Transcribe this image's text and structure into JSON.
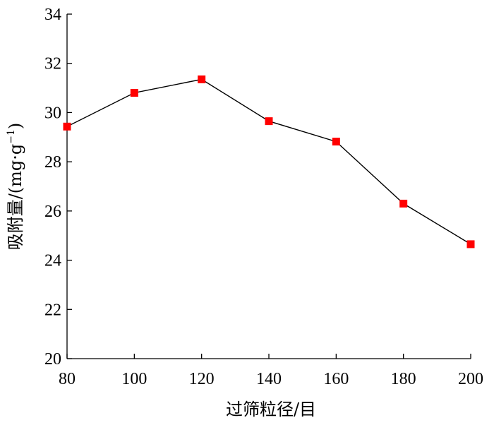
{
  "chart_data": {
    "type": "line",
    "title": "",
    "xlabel": "过筛粒径/目",
    "ylabel": "吸附量/(mg·g",
    "ylabel_superscript": "−1",
    "ylabel_close": ")",
    "xlim": [
      80,
      200
    ],
    "ylim": [
      20,
      34
    ],
    "x_ticks": [
      80,
      100,
      120,
      140,
      160,
      180,
      200
    ],
    "y_ticks": [
      20,
      22,
      24,
      26,
      28,
      30,
      32,
      34
    ],
    "grid": false,
    "legend": "none",
    "series": [
      {
        "x": [
          80,
          100,
          120,
          140,
          160,
          180,
          200
        ],
        "values": [
          29.43,
          30.8,
          31.35,
          29.65,
          28.82,
          26.3,
          24.65
        ],
        "marker": "square",
        "marker_color": "#ff0000",
        "line_color": "#000000"
      }
    ]
  }
}
